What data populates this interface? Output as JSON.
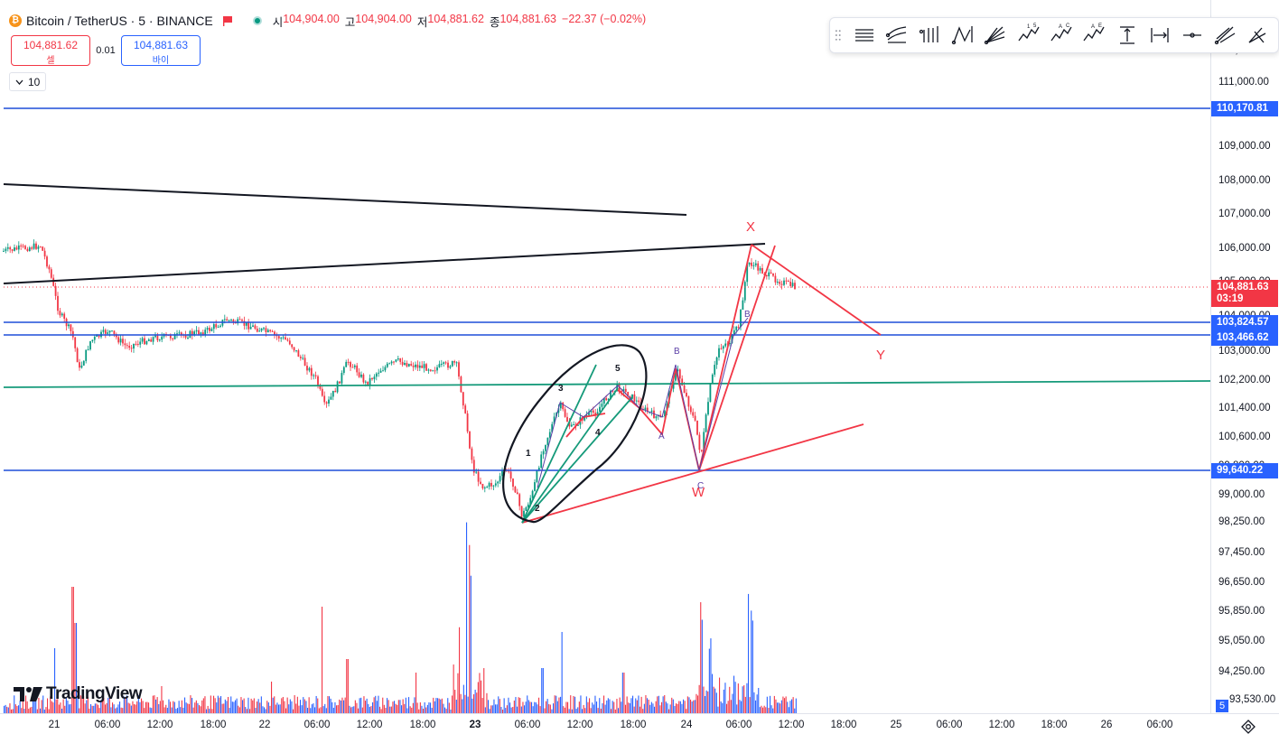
{
  "header": {
    "symbol": "Bitcoin / TetherUS · 5 · BINANCE",
    "open_key": "시",
    "open": "104,904.00",
    "high_key": "고",
    "high": "104,904.00",
    "low_key": "저",
    "low": "104,881.62",
    "close_key": "종",
    "close": "104,881.63",
    "change": "−22.37 (−0.02%)"
  },
  "trade": {
    "sell_price": "104,881.62",
    "sell_label": "셀",
    "spread": "0.01",
    "buy_price": "104,881.63",
    "buy_label": "바이"
  },
  "interval_count": "10",
  "price_axis": {
    "ticks": [
      "111,000.00",
      "109,000.00",
      "108,000.00",
      "107,000.00",
      "106,000.00",
      "103,000.00",
      "102,200.00",
      "101,400.00",
      "100,600.00",
      "99,000.00",
      "98,250.00",
      "97,450.00",
      "96,650.00",
      "95,850.00",
      "95,050.00",
      "94,250.00"
    ],
    "hidden_partial": [
      "112,000.00",
      "105,000.00",
      "104,000.00",
      "99,800.00",
      "93,530.00"
    ],
    "labels": {
      "l110170": "110,170.81",
      "l103824": "103,824.57",
      "l103466": "103,466.62",
      "l99640": "99,640.22",
      "current_price": "104,881.63",
      "countdown": "03:19"
    }
  },
  "time_axis": [
    "21",
    "06:00",
    "12:00",
    "18:00",
    "22",
    "06:00",
    "12:00",
    "18:00",
    "23",
    "06:00",
    "12:00",
    "18:00",
    "24",
    "06:00",
    "12:00",
    "18:00",
    "25",
    "06:00",
    "12:00",
    "18:00",
    "26",
    "06:00"
  ],
  "wave_labels": {
    "X": "X",
    "Y": "Y",
    "W": "W",
    "w1": "1",
    "w2": "2",
    "w3": "3",
    "w4": "4",
    "w5": "5",
    "A": "A",
    "B": "B",
    "C": "C",
    "B2": "B"
  },
  "volume_badge": "5",
  "logo_text": "TradingView",
  "colors": {
    "up": "#089981",
    "down": "#f23645",
    "blue_line": "#1e4fd9",
    "teal_line": "#159a7a",
    "red_drawing": "#f23645",
    "black_drawing": "#131722",
    "vol_blue": "#2962ff",
    "vol_red": "#f23645"
  },
  "toolbar_icons": [
    "grip-icon",
    "horizontal-lines-icon",
    "parallel-channel-icon",
    "vertical-bars-icon",
    "zigzag-path-icon",
    "fib-fan-icon",
    "elliott-impulse-icon",
    "elliott-correction-icon",
    "elliott-triangle-icon",
    "price-range-icon",
    "date-range-icon",
    "line-tool-icon",
    "pitchfork-icon",
    "more-icon"
  ]
}
